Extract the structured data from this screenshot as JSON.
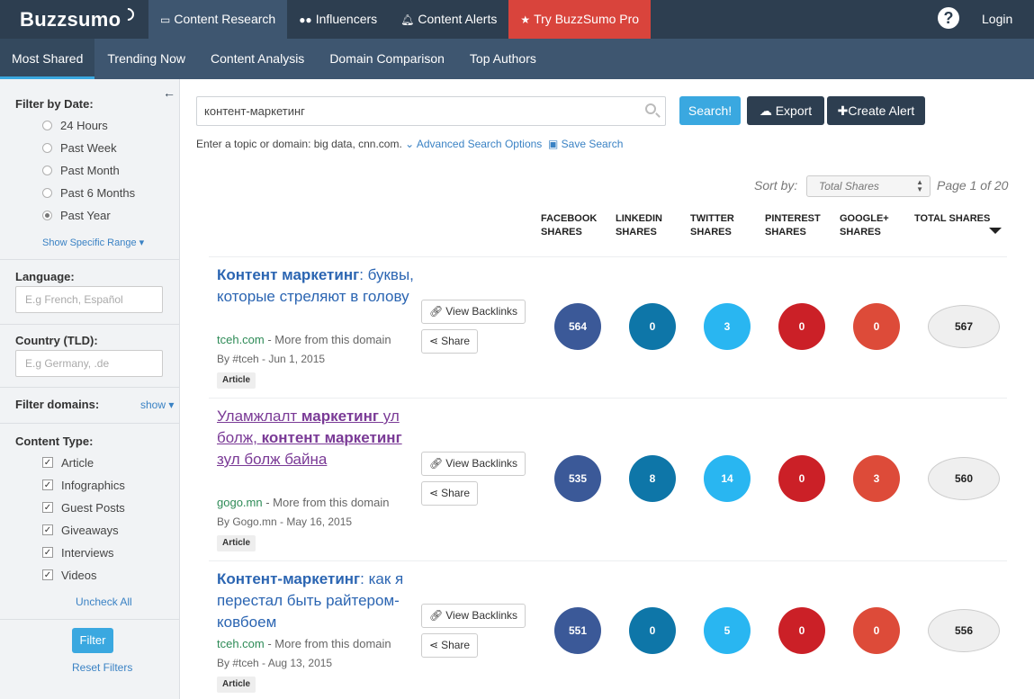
{
  "brand": {
    "logo": "Buzzsumo"
  },
  "topnav": {
    "items": [
      {
        "label": "Content Research",
        "icon": "monitor-icon"
      },
      {
        "label": "Influencers",
        "icon": "users-icon"
      },
      {
        "label": "Content Alerts",
        "icon": "bell-icon"
      },
      {
        "label": "Try BuzzSumo Pro",
        "icon": "star-icon"
      }
    ],
    "help_label": "?",
    "login": "Login"
  },
  "subnav": {
    "items": [
      "Most Shared",
      "Trending Now",
      "Content Analysis",
      "Domain Comparison",
      "Top Authors"
    ],
    "active": "Most Shared"
  },
  "sidebar": {
    "collapse_icon": "←",
    "date_heading": "Filter by Date:",
    "date_options": [
      "24 Hours",
      "Past Week",
      "Past Month",
      "Past 6 Months",
      "Past Year"
    ],
    "date_selected": "Past Year",
    "show_range": "Show Specific Range ▾",
    "language_heading": "Language:",
    "language_placeholder": "E.g French, Español",
    "country_heading": "Country (TLD):",
    "country_placeholder": "E.g Germany, .de",
    "domains_heading": "Filter domains:",
    "domains_show": "show ▾",
    "content_type_heading": "Content Type:",
    "content_types": [
      "Article",
      "Infographics",
      "Guest Posts",
      "Giveaways",
      "Interviews",
      "Videos"
    ],
    "uncheck_all": "Uncheck All",
    "filter_button": "Filter",
    "reset_filters": "Reset Filters"
  },
  "search": {
    "value": "контент-маркетинг",
    "search_button": "Search!",
    "export_button": "Export",
    "create_alert_button": "Create Alert",
    "hint_text": "Enter a topic or domain: big data, cnn.com.",
    "advanced_link": "Advanced Search Options",
    "save_link": "Save Search"
  },
  "sort": {
    "label": "Sort by:",
    "selected": "Total Shares",
    "page_info": "Page 1 of 20"
  },
  "columns": [
    [
      "FACEBOOK",
      "SHARES"
    ],
    [
      "LINKEDIN",
      "SHARES"
    ],
    [
      "TWITTER",
      "SHARES"
    ],
    [
      "PINTEREST",
      "SHARES"
    ],
    [
      "GOOGLE+",
      "SHARES"
    ],
    [
      "TOTAL SHARES",
      ""
    ]
  ],
  "colors": {
    "facebook": "#3b5998",
    "linkedin": "#0e76a8",
    "twitter": "#29b6f1",
    "pinterest": "#cb2027",
    "googleplus": "#dd4b39"
  },
  "results": [
    {
      "title_bold": "Контент маркетинг",
      "title_rest": ": буквы, которые стреляют в голову",
      "domain": "tceh.com",
      "more": " - More from this domain",
      "byline": "By #tceh - Jun 1, 2015",
      "tag": "Article",
      "view_backlinks": "View Backlinks",
      "share": "Share",
      "facebook": "564",
      "linkedin": "0",
      "twitter": "3",
      "pinterest": "0",
      "googleplus": "0",
      "total": "567"
    },
    {
      "title_parts": [
        "Уламжлалт ",
        "маркетинг",
        " ул болж, ",
        "контент маркетинг",
        " зул болж байна"
      ],
      "domain": "gogo.mn",
      "more": " - More from this domain",
      "byline": "By Gogo.mn - May 16, 2015",
      "tag": "Article",
      "view_backlinks": "View Backlinks",
      "share": "Share",
      "facebook": "535",
      "linkedin": "8",
      "twitter": "14",
      "pinterest": "0",
      "googleplus": "3",
      "total": "560"
    },
    {
      "title_bold": "Контент-маркетинг",
      "title_rest": ": как я перестал быть райтером-ковбоем",
      "domain": "tceh.com",
      "more": " - More from this domain",
      "byline": "By #tceh - Aug 13, 2015",
      "tag": "Article",
      "view_backlinks": "View Backlinks",
      "share": "Share",
      "facebook": "551",
      "linkedin": "0",
      "twitter": "5",
      "pinterest": "0",
      "googleplus": "0",
      "total": "556"
    }
  ]
}
